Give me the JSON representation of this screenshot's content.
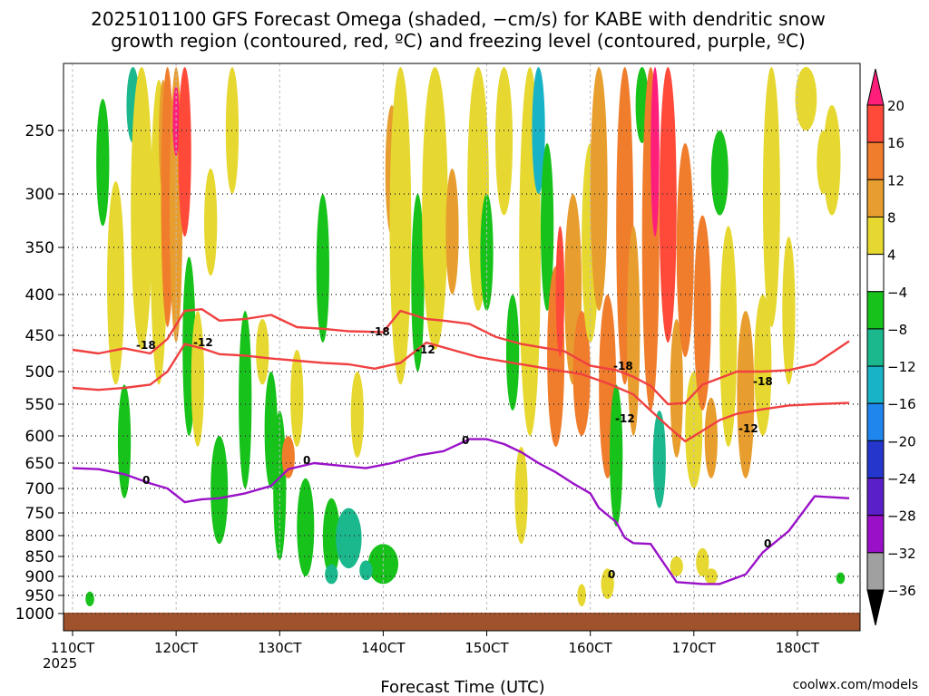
{
  "chart_data": {
    "type": "heatmap",
    "title_line1": "2025101100 GFS Forecast Omega (shaded, −cm/s) for KABE with dendritic snow",
    "title_line2": "growth region (contoured, red, ºC) and freezing level (contoured, purple, ºC)",
    "xlabel": "Forecast Time (UTC)",
    "x_year": "2025",
    "credit": "coolwx.com/models",
    "x_ticks": [
      {
        "label": "110CT",
        "hour": 0
      },
      {
        "label": "120CT",
        "hour": 24
      },
      {
        "label": "130CT",
        "hour": 48
      },
      {
        "label": "140CT",
        "hour": 72
      },
      {
        "label": "150CT",
        "hour": 96
      },
      {
        "label": "160CT",
        "hour": 120
      },
      {
        "label": "170CT",
        "hour": 144
      },
      {
        "label": "180CT",
        "hour": 168
      }
    ],
    "x_range_hours": [
      0,
      180
    ],
    "y_ticks": [
      "250",
      "300",
      "350",
      "400",
      "450",
      "500",
      "550",
      "600",
      "650",
      "700",
      "750",
      "800",
      "850",
      "900",
      "950",
      "1000"
    ],
    "y_tick_values": [
      250,
      300,
      350,
      400,
      450,
      500,
      550,
      600,
      650,
      700,
      750,
      800,
      850,
      900,
      950,
      1000
    ],
    "y_range_hpa": [
      200,
      1030
    ],
    "colorbar_labels": [
      "20",
      "16",
      "12",
      "8",
      "4",
      "−4",
      "−8",
      "−12",
      "−16",
      "−20",
      "−24",
      "−28",
      "−32",
      "−36"
    ],
    "colorbar_colors": [
      "#ff1f7a",
      "#ff4a3a",
      "#f07d2c",
      "#e89e2e",
      "#e6d830",
      "#ffffff",
      "#17c21a",
      "#1ab88c",
      "#19b3c8",
      "#1f86ee",
      "#2436cc",
      "#5a1fc8",
      "#9a10c8",
      "#a0a0a0",
      "#000000"
    ],
    "contour_labels": {
      "minus18": "-18",
      "minus12": "-12",
      "zero": "0"
    },
    "series": [
      {
        "name": "-18C isotherm",
        "color": "#f04040",
        "x": [
          0,
          6,
          12,
          18,
          22,
          26,
          30,
          34,
          40,
          46,
          52,
          58,
          64,
          72,
          76,
          82,
          86,
          92,
          98,
          104,
          110,
          114,
          120,
          126,
          130,
          134,
          138,
          142,
          146,
          150,
          154,
          160,
          166,
          172,
          180
        ],
        "y": [
          470,
          475,
          468,
          475,
          455,
          420,
          418,
          432,
          430,
          425,
          440,
          442,
          445,
          446,
          420,
          430,
          432,
          436,
          452,
          462,
          468,
          472,
          492,
          498,
          508,
          522,
          550,
          548,
          520,
          510,
          500,
          500,
          498,
          490,
          458
        ]
      },
      {
        "name": "-12C isotherm",
        "color": "#f04040",
        "x": [
          0,
          6,
          12,
          18,
          22,
          26,
          30,
          34,
          40,
          46,
          52,
          58,
          64,
          70,
          76,
          82,
          88,
          94,
          100,
          106,
          112,
          118,
          124,
          130,
          134,
          138,
          142,
          146,
          150,
          154,
          160,
          166,
          172,
          180
        ],
        "y": [
          525,
          528,
          525,
          520,
          500,
          462,
          468,
          476,
          478,
          482,
          485,
          488,
          490,
          496,
          488,
          460,
          470,
          480,
          486,
          492,
          498,
          504,
          518,
          535,
          560,
          585,
          610,
          592,
          575,
          565,
          558,
          552,
          550,
          548
        ]
      },
      {
        "name": "0C freezing level",
        "color": "#9a12c8",
        "x": [
          0,
          6,
          12,
          18,
          22,
          26,
          30,
          34,
          40,
          46,
          50,
          56,
          62,
          68,
          74,
          80,
          86,
          92,
          96,
          100,
          104,
          108,
          112,
          116,
          120,
          122,
          126,
          128,
          130,
          134,
          140,
          146,
          150,
          156,
          160,
          166,
          172,
          180
        ],
        "y": [
          660,
          662,
          672,
          690,
          700,
          728,
          722,
          720,
          710,
          695,
          662,
          650,
          655,
          660,
          650,
          636,
          628,
          606,
          606,
          615,
          630,
          650,
          668,
          690,
          710,
          740,
          770,
          805,
          818,
          820,
          915,
          920,
          920,
          895,
          840,
          790,
          716,
          720
        ]
      }
    ]
  }
}
